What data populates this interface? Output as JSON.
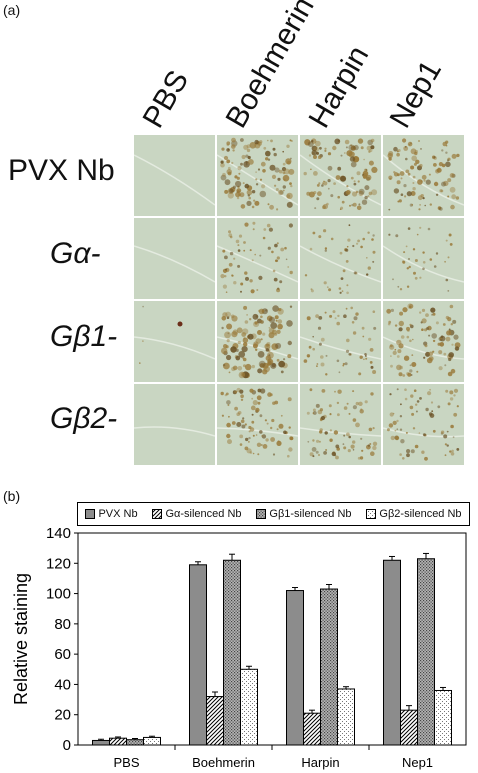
{
  "panel_a_label": "(a)",
  "panel_b_label": "(b)",
  "image_grid": {
    "columns": [
      "PBS",
      "Boehmerin",
      "Harpin",
      "Nep1"
    ],
    "rows": [
      "PVX Nb",
      "Gα-",
      "Gβ1-",
      "Gβ2-"
    ],
    "colors": {
      "leaf_base": "#c9d6c2",
      "stain": "#9a7a3a",
      "stain_dark": "#6b5226"
    }
  },
  "chart_data": {
    "type": "bar",
    "categories": [
      "PBS",
      "Boehmerin",
      "Harpin",
      "Nep1"
    ],
    "series": [
      {
        "name": "PVX Nb",
        "values": [
          3,
          119,
          102,
          122
        ],
        "errors": [
          0.8,
          2,
          2,
          2.5
        ]
      },
      {
        "name": "Gα-silenced Nb",
        "values": [
          4.5,
          32,
          21,
          23
        ],
        "errors": [
          0.8,
          3,
          2,
          3
        ]
      },
      {
        "name": "Gβ1-silenced Nb",
        "values": [
          3.5,
          122,
          103,
          123
        ],
        "errors": [
          0.8,
          4,
          3,
          3.5
        ]
      },
      {
        "name": "Gβ2-silenced Nb",
        "values": [
          5,
          50,
          37,
          36
        ],
        "errors": [
          0.8,
          2,
          1.5,
          2
        ]
      }
    ],
    "title": "",
    "xlabel": "",
    "ylabel": "Relative staining",
    "ylim": [
      0,
      140
    ],
    "yticks": [
      0,
      20,
      40,
      60,
      80,
      100,
      120,
      140
    ],
    "grid": false,
    "legend_position": "top",
    "colors": {
      "PVX Nb": "#8c8c8c",
      "Gα-silenced Nb": "#ffffff",
      "Gβ1-silenced Nb": "#9c9c9c",
      "Gβ2-silenced Nb": "#ffffff"
    },
    "patterns": {
      "PVX Nb": "solid",
      "Gα-silenced Nb": "diagonal",
      "Gβ1-silenced Nb": "dots-dense",
      "Gβ2-silenced Nb": "dots-sparse"
    }
  }
}
